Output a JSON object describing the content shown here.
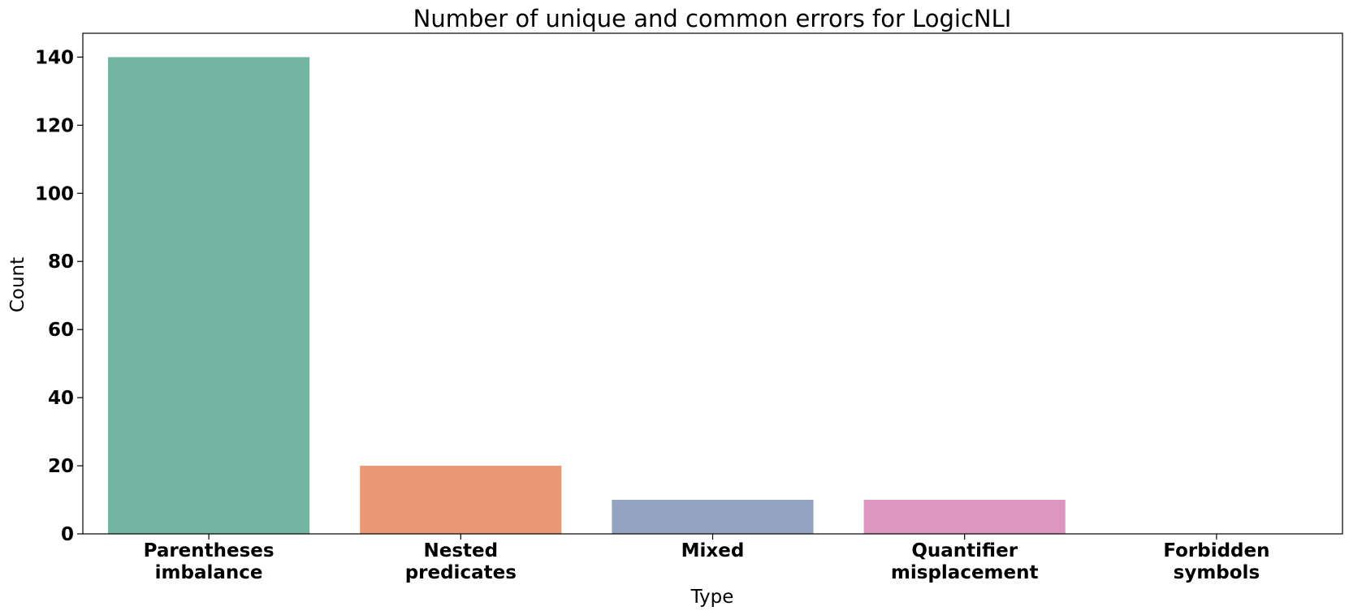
{
  "chart_data": {
    "type": "bar",
    "title": "Number of unique and common errors for LogicNLI",
    "xlabel": "Type",
    "ylabel": "Count",
    "categories": [
      [
        "Parentheses",
        "imbalance"
      ],
      [
        "Nested",
        "predicates"
      ],
      [
        "Mixed"
      ],
      [
        "Quantifier",
        "misplacement"
      ],
      [
        "Forbidden",
        "symbols"
      ]
    ],
    "values": [
      140,
      20,
      10,
      10,
      0
    ],
    "colors": [
      "#73b5a0",
      "#e99875",
      "#95a3c3",
      "#dc96c0",
      "#a6d854"
    ],
    "yticks": [
      0,
      20,
      40,
      60,
      80,
      100,
      120,
      140
    ],
    "ylim": [
      0,
      147
    ],
    "grid": false,
    "legend": "none"
  }
}
